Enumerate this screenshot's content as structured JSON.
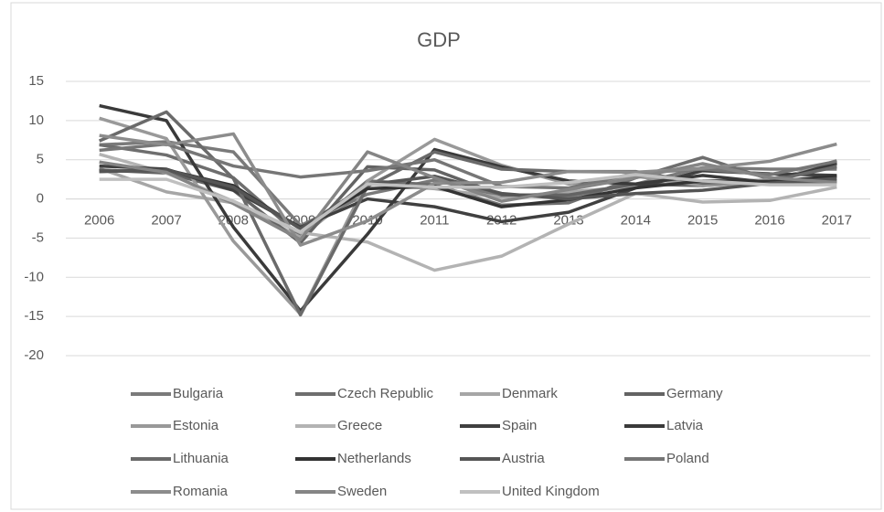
{
  "chart_data": {
    "type": "line",
    "title": "GDP",
    "categories": [
      "2006",
      "2007",
      "2008",
      "2009",
      "2010",
      "2011",
      "2012",
      "2013",
      "2014",
      "2015",
      "2016",
      "2017"
    ],
    "ylim": [
      -20,
      15
    ],
    "yticks": [
      15,
      10,
      5,
      0,
      -5,
      -10,
      -15,
      -20
    ],
    "grid": true,
    "series": [
      {
        "name": "Bulgaria",
        "color": "#7a7a7a",
        "values": [
          6.9,
          7.3,
          6.0,
          -3.4,
          0.6,
          2.4,
          0.4,
          0.3,
          1.9,
          4.0,
          3.8,
          3.8
        ]
      },
      {
        "name": "Czech Republic",
        "color": "#6e6e6e",
        "values": [
          6.9,
          5.6,
          2.7,
          -4.8,
          2.3,
          1.8,
          -0.8,
          -0.5,
          2.7,
          5.3,
          2.5,
          4.4
        ]
      },
      {
        "name": "Denmark",
        "color": "#a6a6a6",
        "values": [
          3.9,
          0.9,
          -0.5,
          -4.9,
          1.9,
          1.3,
          0.2,
          0.9,
          1.6,
          2.3,
          2.4,
          2.3
        ]
      },
      {
        "name": "Germany",
        "color": "#636363",
        "values": [
          3.7,
          3.3,
          1.1,
          -5.6,
          4.1,
          3.7,
          0.5,
          0.5,
          1.9,
          1.7,
          2.2,
          2.2
        ]
      },
      {
        "name": "Estonia",
        "color": "#999999",
        "values": [
          10.3,
          7.7,
          -5.4,
          -14.7,
          2.3,
          7.6,
          4.3,
          1.9,
          2.9,
          1.7,
          2.1,
          4.9
        ]
      },
      {
        "name": "Greece",
        "color": "#b3b3b3",
        "values": [
          5.7,
          3.3,
          -0.3,
          -4.3,
          -5.5,
          -9.1,
          -7.3,
          -3.2,
          0.7,
          -0.4,
          -0.2,
          1.5
        ]
      },
      {
        "name": "Spain",
        "color": "#404040",
        "values": [
          4.2,
          3.8,
          1.1,
          -3.6,
          0.0,
          -1.0,
          -2.9,
          -1.7,
          1.4,
          3.6,
          3.2,
          3.0
        ]
      },
      {
        "name": "Latvia",
        "color": "#3a3a3a",
        "values": [
          11.9,
          10.0,
          -3.6,
          -14.3,
          -4.5,
          6.3,
          4.1,
          2.3,
          1.9,
          3.0,
          2.1,
          4.6
        ]
      },
      {
        "name": "Lithuania",
        "color": "#6a6a6a",
        "values": [
          7.4,
          11.1,
          2.6,
          -14.8,
          1.6,
          6.0,
          3.8,
          3.5,
          3.5,
          2.0,
          2.3,
          4.1
        ]
      },
      {
        "name": "Netherlands",
        "color": "#333333",
        "values": [
          3.5,
          3.7,
          1.7,
          -3.8,
          1.3,
          1.6,
          -1.0,
          -0.1,
          1.4,
          2.3,
          2.2,
          2.9
        ]
      },
      {
        "name": "Austria",
        "color": "#555555",
        "values": [
          3.5,
          3.7,
          1.5,
          -3.8,
          1.8,
          2.9,
          0.7,
          0.0,
          0.7,
          1.1,
          2.0,
          2.6
        ]
      },
      {
        "name": "Poland",
        "color": "#767676",
        "values": [
          6.2,
          7.0,
          4.2,
          2.8,
          3.6,
          5.0,
          1.6,
          1.4,
          3.3,
          3.8,
          3.1,
          4.8
        ]
      },
      {
        "name": "Romania",
        "color": "#8c8c8c",
        "values": [
          8.1,
          6.9,
          8.3,
          -5.9,
          -2.8,
          2.0,
          2.1,
          3.5,
          3.4,
          3.9,
          4.8,
          7.0
        ]
      },
      {
        "name": "Sweden",
        "color": "#858585",
        "values": [
          4.7,
          3.4,
          -0.6,
          -5.2,
          6.0,
          2.7,
          -0.3,
          1.2,
          2.7,
          4.5,
          2.7,
          2.1
        ]
      },
      {
        "name": "United Kingdom",
        "color": "#c0c0c0",
        "values": [
          2.5,
          2.5,
          -0.3,
          -4.2,
          1.9,
          1.5,
          1.5,
          2.1,
          3.1,
          2.3,
          1.8,
          1.8
        ]
      }
    ]
  }
}
